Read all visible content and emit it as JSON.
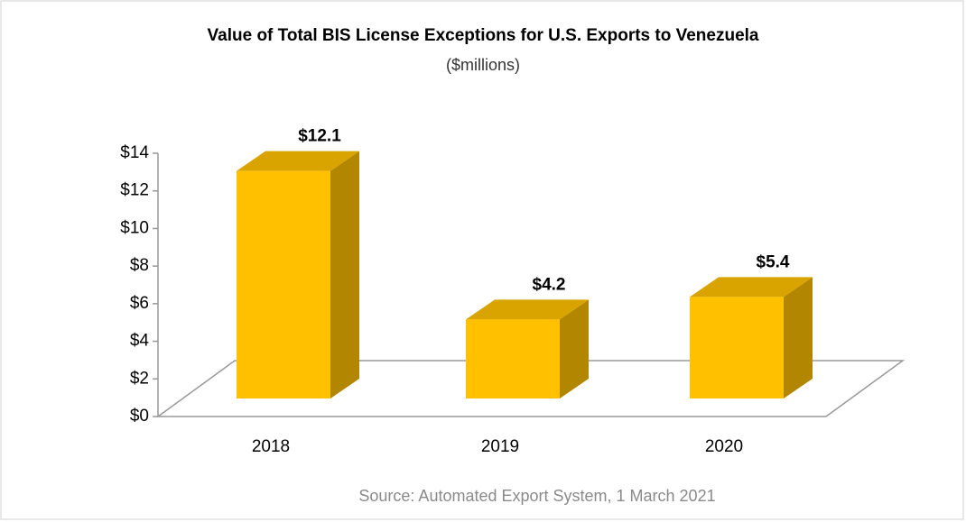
{
  "chart_data": {
    "type": "bar",
    "title": "Value of Total BIS License Exceptions for U.S. Exports to Venezuela",
    "subtitle": "($millions)",
    "source": "Source: Automated Export System, 1 March 2021",
    "categories": [
      "2018",
      "2019",
      "2020"
    ],
    "values": [
      12.1,
      4.2,
      5.4
    ],
    "value_labels": [
      "$12.1",
      "$4.2",
      "$5.4"
    ],
    "color": "#ffc000",
    "ylim": [
      0,
      14
    ],
    "yticks": [
      {
        "value": 0,
        "label": "$0"
      },
      {
        "value": 2,
        "label": "$2"
      },
      {
        "value": 4,
        "label": "$4"
      },
      {
        "value": 6,
        "label": "$6"
      },
      {
        "value": 8,
        "label": "$8"
      },
      {
        "value": 10,
        "label": "$10"
      },
      {
        "value": 12,
        "label": "$12"
      },
      {
        "value": 14,
        "label": "$14"
      }
    ]
  }
}
